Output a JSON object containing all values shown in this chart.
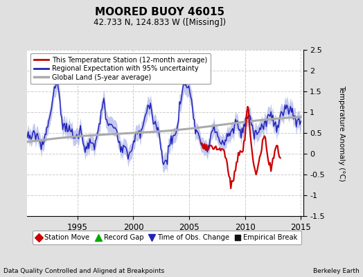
{
  "title": "MOORED BUOY 46015",
  "subtitle": "42.733 N, 124.833 W ([Missing])",
  "ylabel": "Temperature Anomaly (°C)",
  "xlim": [
    1990.5,
    2015.2
  ],
  "ylim": [
    -1.5,
    2.5
  ],
  "yticks": [
    -1.5,
    -1.0,
    -0.5,
    0.0,
    0.5,
    1.0,
    1.5,
    2.0,
    2.5
  ],
  "xticks": [
    1995,
    2000,
    2005,
    2010,
    2015
  ],
  "footer_left": "Data Quality Controlled and Aligned at Breakpoints",
  "footer_right": "Berkeley Earth",
  "bg_color": "#e0e0e0",
  "plot_bg_color": "#ffffff",
  "grid_color": "#cccccc",
  "station_color": "#cc0000",
  "regional_line_color": "#2222bb",
  "regional_fill_color": "#b0b8e8",
  "global_color": "#aaaaaa",
  "legend2_colors": [
    "#cc0000",
    "#00aa00",
    "#2222bb",
    "#111111"
  ]
}
